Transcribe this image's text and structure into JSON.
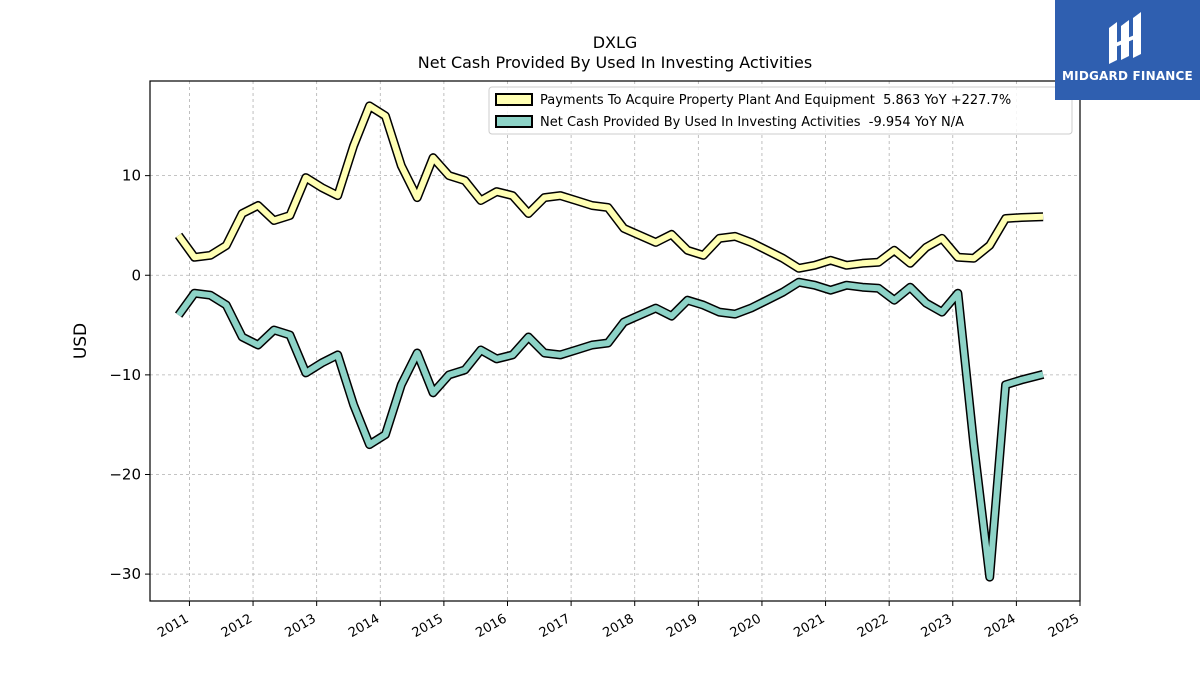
{
  "chart_data": {
    "type": "line",
    "title": "DXLG",
    "subtitle": "Net Cash Provided By Used In Investing Activities",
    "ylabel": "USD",
    "xlabel": "",
    "xlim": [
      2010.38,
      2025.0
    ],
    "ylim": [
      -32.7,
      19.5
    ],
    "yticks": [
      10,
      0,
      -10,
      -20,
      -30
    ],
    "ytick_labels": [
      "10",
      "0",
      "−10",
      "−20",
      "−30"
    ],
    "xticks": [
      2011,
      2012,
      2013,
      2014,
      2015,
      2016,
      2017,
      2018,
      2019,
      2020,
      2021,
      2022,
      2023,
      2024,
      2025
    ],
    "xtick_labels": [
      "2011",
      "2012",
      "2013",
      "2014",
      "2015",
      "2016",
      "2017",
      "2018",
      "2019",
      "2020",
      "2021",
      "2022",
      "2023",
      "2024",
      "2025"
    ],
    "grid": true,
    "legend_position": "top-right",
    "x": [
      2010.83,
      2011.08,
      2011.33,
      2011.58,
      2011.83,
      2012.08,
      2012.33,
      2012.58,
      2012.83,
      2013.08,
      2013.33,
      2013.58,
      2013.83,
      2014.08,
      2014.33,
      2014.58,
      2014.83,
      2015.08,
      2015.33,
      2015.58,
      2015.83,
      2016.08,
      2016.33,
      2016.58,
      2016.83,
      2017.08,
      2017.33,
      2017.58,
      2017.83,
      2018.08,
      2018.33,
      2018.58,
      2018.83,
      2019.08,
      2019.33,
      2019.58,
      2019.83,
      2020.08,
      2020.33,
      2020.58,
      2020.83,
      2021.08,
      2021.33,
      2021.58,
      2021.83,
      2022.08,
      2022.33,
      2022.58,
      2022.83,
      2023.08,
      2023.33,
      2023.58,
      2023.83,
      2024.08,
      2024.42
    ],
    "series": [
      {
        "name": "Payments To Acquire Property Plant And Equipment  5.863 YoY +227.7%",
        "color": "#ffffb3",
        "values": [
          4.0,
          1.8,
          2.0,
          3.0,
          6.2,
          7.0,
          5.5,
          6.0,
          9.8,
          8.8,
          8.0,
          13.0,
          17.0,
          16.0,
          11.0,
          7.8,
          11.8,
          10.0,
          9.5,
          7.5,
          8.4,
          8.0,
          6.2,
          7.8,
          8.0,
          7.5,
          7.0,
          6.8,
          4.7,
          4.0,
          3.3,
          4.1,
          2.5,
          2.0,
          3.7,
          3.9,
          3.3,
          2.5,
          1.7,
          0.7,
          1.0,
          1.5,
          1.0,
          1.2,
          1.3,
          2.5,
          1.2,
          2.8,
          3.7,
          1.8,
          1.7,
          3.0,
          5.7,
          5.8,
          5.863
        ]
      },
      {
        "name": "Net Cash Provided By Used In Investing Activities  -9.954 YoY N/A",
        "color": "#8dd3c7",
        "values": [
          -4.0,
          -1.8,
          -2.0,
          -3.0,
          -6.2,
          -7.0,
          -5.5,
          -6.0,
          -9.8,
          -8.8,
          -8.0,
          -13.0,
          -17.0,
          -16.0,
          -11.0,
          -7.8,
          -11.8,
          -10.0,
          -9.5,
          -7.5,
          -8.4,
          -8.0,
          -6.2,
          -7.8,
          -8.0,
          -7.5,
          -7.0,
          -6.8,
          -4.7,
          -4.0,
          -3.3,
          -4.1,
          -2.5,
          -3.0,
          -3.7,
          -3.9,
          -3.3,
          -2.5,
          -1.7,
          -0.7,
          -1.0,
          -1.5,
          -1.0,
          -1.2,
          -1.3,
          -2.5,
          -1.2,
          -2.8,
          -3.7,
          -1.8,
          -17.0,
          -30.3,
          -11.0,
          -10.5,
          -9.954
        ]
      }
    ]
  },
  "logo": {
    "name": "MIDGARD FINANCE"
  }
}
